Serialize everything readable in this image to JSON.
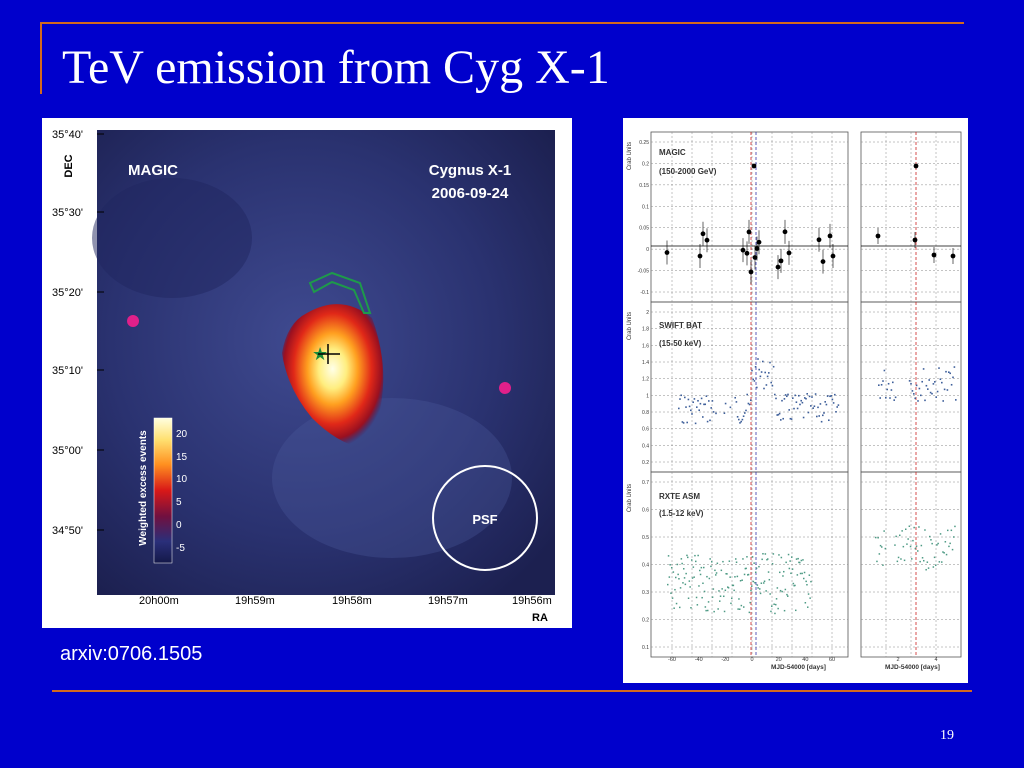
{
  "slide": {
    "title": "TeV emission from Cyg X-1",
    "caption": "arxiv:0706.1505",
    "page_number": "19"
  },
  "skymap": {
    "label_left": "MAGIC",
    "label_right_1": "Cygnus X-1",
    "label_right_2": "2006-09-24",
    "y_axis_label": "DEC",
    "x_axis_label": "RA",
    "dec_ticks": [
      "35°40'",
      "35°30'",
      "35°20'",
      "35°10'",
      "35°00'",
      "34°50'"
    ],
    "ra_ticks": [
      "20h00m",
      "19h59m",
      "19h58m",
      "19h57m",
      "19h56m"
    ],
    "colorbar_label": "Weighted excess events",
    "colorbar_ticks": [
      "20",
      "15",
      "10",
      "5",
      "0",
      "-5"
    ],
    "psf_label": "PSF"
  },
  "lightcurve": {
    "panels": [
      {
        "name_1": "MAGIC",
        "name_2": "(150-2000 GeV)",
        "ylabel": "Crab Units",
        "yticks": [
          "0.25",
          "0.2",
          "0.15",
          "0.1",
          "0.05",
          "0",
          "-0.05",
          "-0.1"
        ]
      },
      {
        "name_1": "SWIFT BAT",
        "name_2": "(15-50 keV)",
        "ylabel": "Crab Units",
        "yticks": [
          "2",
          "1.8",
          "1.6",
          "1.4",
          "1.2",
          "1",
          "0.8",
          "0.6",
          "0.4",
          "0.2"
        ]
      },
      {
        "name_1": "RXTE ASM",
        "name_2": "(1.5-12 keV)",
        "ylabel": "Crab Units",
        "yticks": [
          "0.7",
          "0.6",
          "0.5",
          "0.4",
          "0.3",
          "0.2",
          "0.1"
        ]
      }
    ],
    "xticks_left": [
      "-60",
      "-40",
      "-20",
      "0",
      "20",
      "40",
      "60"
    ],
    "xticks_right": [
      "2",
      "4"
    ],
    "xlabel_left": "MJD-54000 [days]",
    "xlabel_right": "MJD-54000 [days]"
  },
  "colors": {
    "background": "#0000cc",
    "rule": "#d2691e",
    "magic_points": "#000000",
    "bat_points": "#3e5f9a",
    "asm_points": "#4d9a84",
    "marker_line": "#cc2222"
  }
}
